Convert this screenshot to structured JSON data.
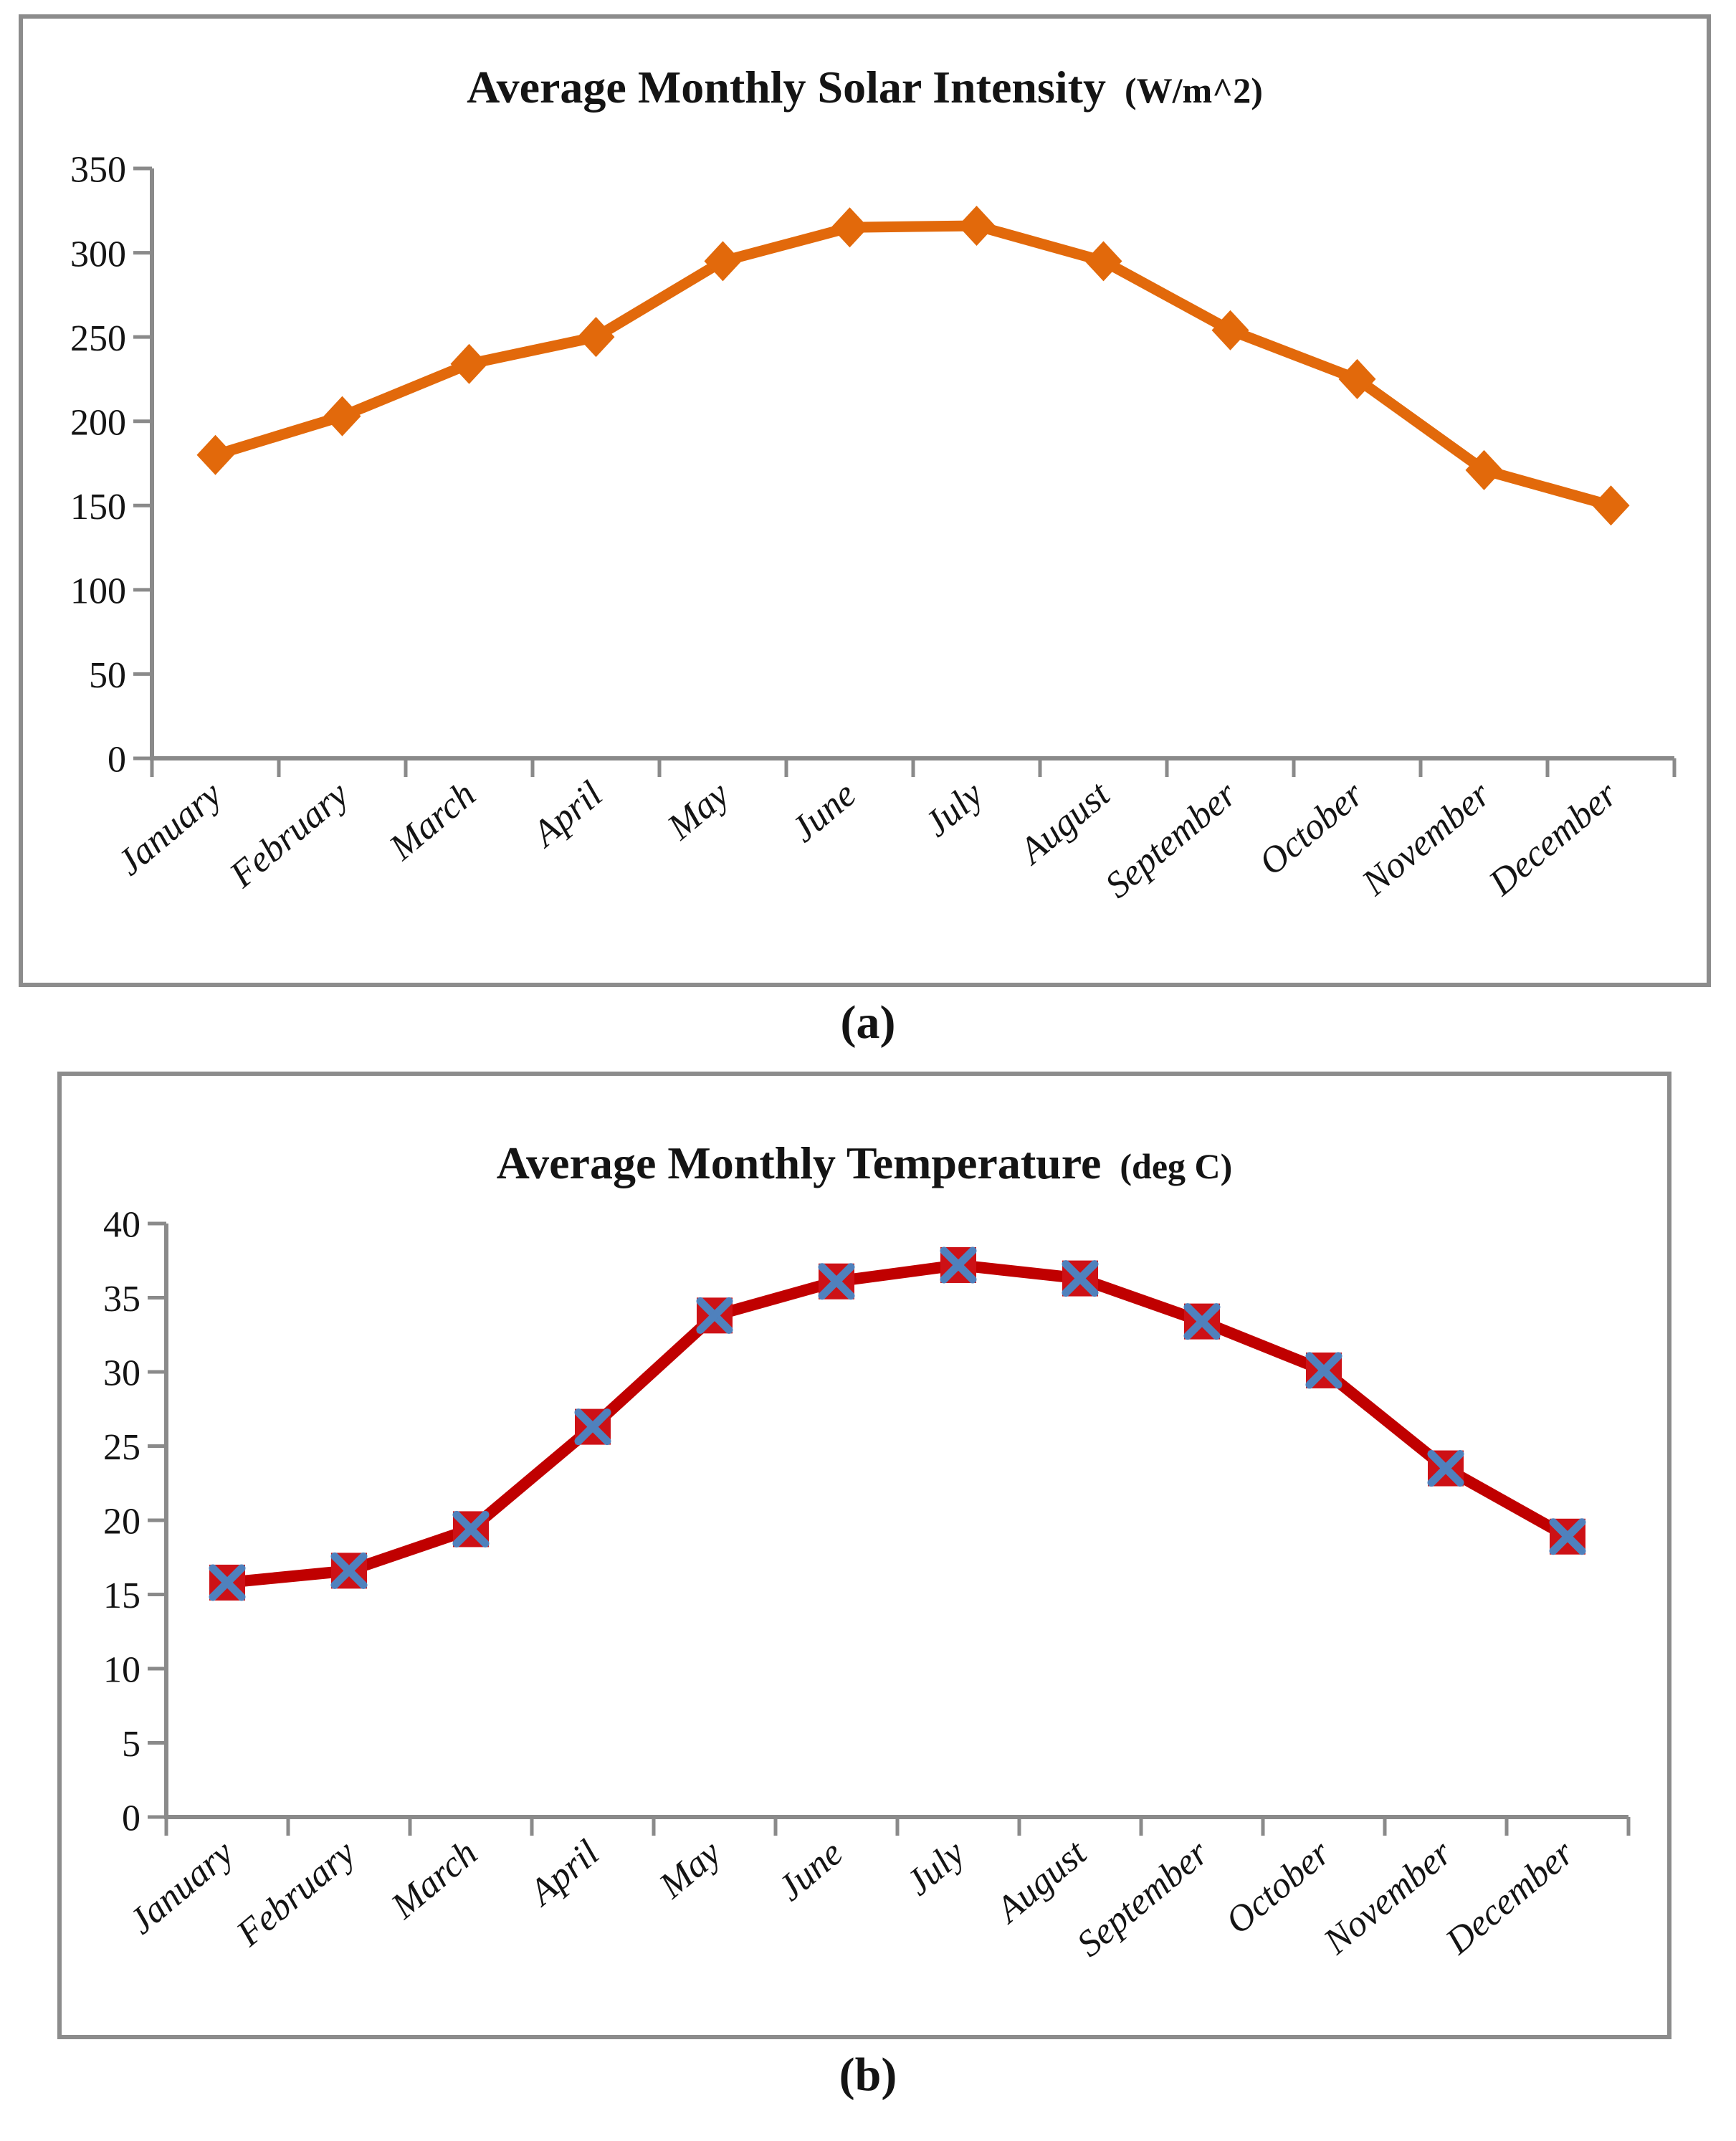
{
  "page": {
    "background_color": "#ffffff"
  },
  "chart_data": [
    {
      "id": "a",
      "type": "line",
      "title": "Average Monthly Solar Intensity",
      "title_unit": "(W/m^2)",
      "caption": "(a)",
      "xlabel": "",
      "ylabel": "",
      "categories": [
        "January",
        "February",
        "March",
        "April",
        "May",
        "June",
        "July",
        "August",
        "September",
        "October",
        "November",
        "December"
      ],
      "series": [
        {
          "name": "Average Monthly Solar Intensity",
          "values": [
            180,
            203,
            234,
            250,
            295,
            315,
            316,
            295,
            254,
            225,
            171,
            150
          ]
        }
      ],
      "ylim": [
        0,
        350
      ],
      "yticks": [
        0,
        50,
        100,
        150,
        200,
        250,
        300,
        350
      ],
      "grid": false,
      "legend": "none",
      "line_color": "#E2690B",
      "marker": {
        "shape": "diamond",
        "fill": "#E2690B"
      },
      "axis_color": "#8A8A8A",
      "text_color": "#141414"
    },
    {
      "id": "b",
      "type": "line",
      "title": "Average Monthly Temperature",
      "title_unit": "(deg C)",
      "caption": "(b)",
      "xlabel": "",
      "ylabel": "",
      "categories": [
        "January",
        "February",
        "March",
        "April",
        "May",
        "June",
        "July",
        "August",
        "September",
        "October",
        "November",
        "December"
      ],
      "series": [
        {
          "name": "Average Monthly Temperature",
          "values": [
            15.8,
            16.6,
            19.4,
            26.3,
            33.8,
            36.1,
            37.2,
            36.3,
            33.4,
            30.1,
            23.5,
            18.9
          ]
        }
      ],
      "ylim": [
        0,
        40
      ],
      "yticks": [
        0,
        5,
        10,
        15,
        20,
        25,
        30,
        35,
        40
      ],
      "grid": false,
      "legend": "none",
      "line_color": "#C00000",
      "marker": {
        "shape": "square-x",
        "fill": "#CD1116",
        "x_color": "#4F81BD"
      },
      "axis_color": "#8A8A8A",
      "text_color": "#141414"
    }
  ]
}
